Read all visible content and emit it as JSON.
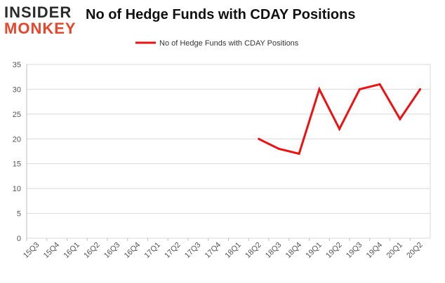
{
  "logo": {
    "line1": "INSIDER",
    "line2": "MONKEY"
  },
  "colors": {
    "series": "#ee1111",
    "grid": "#d9d9d9",
    "axis_text": "#555555",
    "logo_dark": "#2b2b2b",
    "logo_accent": "#e8452a"
  },
  "chart_data": {
    "type": "line",
    "title": "No of Hedge Funds with CDAY Positions",
    "xlabel": "",
    "ylabel": "",
    "ylim": [
      0,
      35
    ],
    "yticks": [
      0,
      5,
      10,
      15,
      20,
      25,
      30,
      35
    ],
    "grid": true,
    "legend_position": "top-center",
    "categories": [
      "15Q3",
      "15Q4",
      "16Q1",
      "16Q2",
      "16Q3",
      "16Q4",
      "17Q1",
      "17Q2",
      "17Q3",
      "17Q4",
      "18Q1",
      "18Q2",
      "18Q3",
      "18Q4",
      "19Q1",
      "19Q2",
      "19Q3",
      "19Q4",
      "20Q1",
      "20Q2"
    ],
    "series": [
      {
        "name": "No of Hedge Funds with CDAY Positions",
        "values": [
          null,
          null,
          null,
          null,
          null,
          null,
          null,
          null,
          null,
          null,
          null,
          20,
          18,
          17,
          30,
          22,
          30,
          31,
          24,
          30
        ]
      }
    ]
  }
}
